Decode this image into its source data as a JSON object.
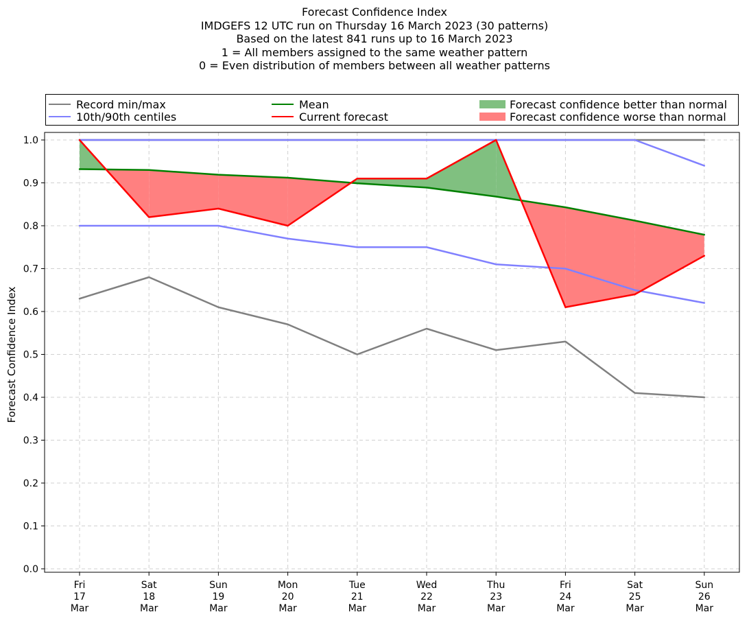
{
  "titles": [
    "Forecast Confidence Index",
    "IMDGEFS 12 UTC run on Thursday 16 March 2023 (30 patterns)",
    "Based on the latest 841 runs up to 16 March 2023",
    "1 = All members assigned to the same weather pattern",
    "0 = Even distribution of members between all weather patterns"
  ],
  "legend": {
    "record": "Record min/max",
    "centiles": "10th/90th centiles",
    "mean": "Mean",
    "current": "Current forecast",
    "better": "Forecast confidence better than normal",
    "worse": "Forecast confidence worse than normal"
  },
  "colors": {
    "record": "#808080",
    "centiles": "#8080ff",
    "mean": "#008000",
    "current": "#ff0000",
    "better": "#80c080",
    "worse": "#ff8080",
    "grid": "#d0d0d0"
  },
  "chart_data": {
    "type": "line",
    "ylabel": "Forecast Confidence Index",
    "ylim": [
      0,
      1
    ],
    "yticks": [
      "0.0",
      "0.1",
      "0.2",
      "0.3",
      "0.4",
      "0.5",
      "0.6",
      "0.7",
      "0.8",
      "0.9",
      "1.0"
    ],
    "categories": [
      [
        "Fri",
        "17",
        "Mar"
      ],
      [
        "Sat",
        "18",
        "Mar"
      ],
      [
        "Sun",
        "19",
        "Mar"
      ],
      [
        "Mon",
        "20",
        "Mar"
      ],
      [
        "Tue",
        "21",
        "Mar"
      ],
      [
        "Wed",
        "22",
        "Mar"
      ],
      [
        "Thu",
        "23",
        "Mar"
      ],
      [
        "Fri",
        "24",
        "Mar"
      ],
      [
        "Sat",
        "25",
        "Mar"
      ],
      [
        "Sun",
        "26",
        "Mar"
      ]
    ],
    "grid": true,
    "legend_position": "top",
    "series": [
      {
        "name": "Record min/max",
        "key": "record_max",
        "values": [
          1.0,
          1.0,
          1.0,
          1.0,
          1.0,
          1.0,
          1.0,
          1.0,
          1.0,
          1.0
        ]
      },
      {
        "name": "Record min/max",
        "key": "record_min",
        "values": [
          0.63,
          0.68,
          0.61,
          0.57,
          0.5,
          0.56,
          0.51,
          0.53,
          0.41,
          0.4
        ]
      },
      {
        "name": "10th/90th centiles",
        "key": "p90",
        "values": [
          1.0,
          1.0,
          1.0,
          1.0,
          1.0,
          1.0,
          1.0,
          1.0,
          1.0,
          0.94
        ]
      },
      {
        "name": "10th/90th centiles",
        "key": "p10",
        "values": [
          0.8,
          0.8,
          0.8,
          0.77,
          0.75,
          0.75,
          0.71,
          0.7,
          0.65,
          0.62
        ]
      },
      {
        "name": "Mean",
        "key": "mean",
        "values": [
          0.932,
          0.93,
          0.919,
          0.912,
          0.899,
          0.889,
          0.868,
          0.843,
          0.812,
          0.779
        ]
      },
      {
        "name": "Current forecast",
        "key": "current",
        "values": [
          1.0,
          0.82,
          0.84,
          0.8,
          0.91,
          0.91,
          1.0,
          0.61,
          0.64,
          0.73
        ]
      }
    ]
  }
}
